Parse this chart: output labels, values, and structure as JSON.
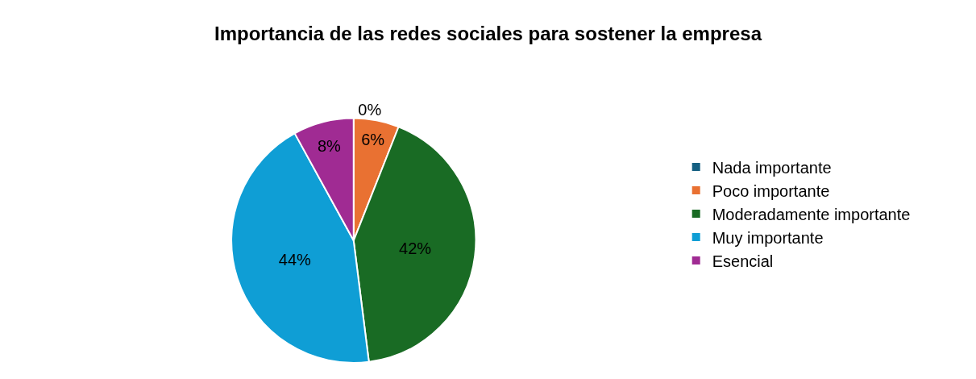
{
  "chart_data": {
    "type": "pie",
    "title": "Importancia de las redes sociales para sostener la empresa",
    "categories": [
      "Nada importante",
      "Poco importante",
      "Moderadamente importante",
      "Muy importante",
      "Esencial"
    ],
    "values": [
      0,
      6,
      42,
      44,
      8
    ],
    "colors": [
      "#156082",
      "#e97132",
      "#196b24",
      "#0f9ed5",
      "#a02b93"
    ],
    "value_labels": [
      "0%",
      "6%",
      "42%",
      "44%",
      "8%"
    ],
    "legend": "right"
  }
}
